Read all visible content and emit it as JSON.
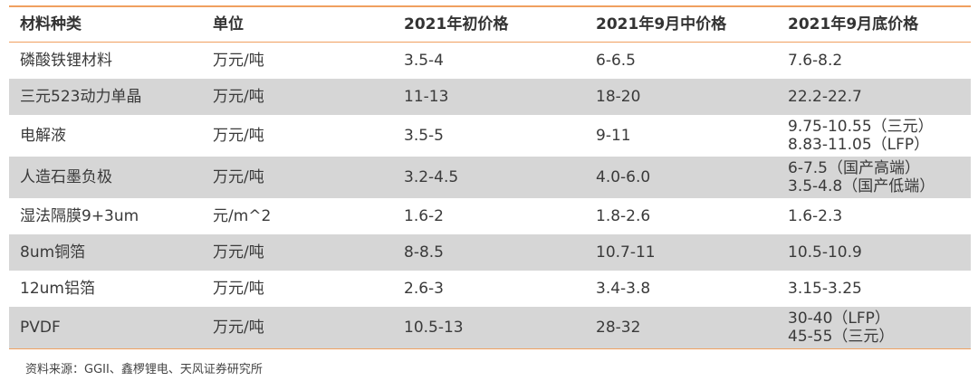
{
  "table": {
    "headers": [
      "材料种类",
      "单位",
      "2021年初价格",
      "2021年9月中价格",
      "2021年9月底价格"
    ],
    "rows": [
      {
        "material": "磷酸铁锂材料",
        "unit": "万元/吨",
        "early": "3.5-4",
        "mid_sep": "6-6.5",
        "end_sep": [
          "7.6-8.2"
        ]
      },
      {
        "material": "三元523动力单晶",
        "unit": "万元/吨",
        "early": "11-13",
        "mid_sep": "18-20",
        "end_sep": [
          "22.2-22.7"
        ]
      },
      {
        "material": "电解液",
        "unit": "万元/吨",
        "early": "3.5-5",
        "mid_sep": "9-11",
        "end_sep": [
          "9.75-10.55（三元）",
          "8.83-11.05（LFP）"
        ]
      },
      {
        "material": "人造石墨负极",
        "unit": "万元/吨",
        "early": "3.2-4.5",
        "mid_sep": "4.0-6.0",
        "end_sep": [
          "6-7.5（国产高端）",
          "3.5-4.8（国产低端）"
        ]
      },
      {
        "material": "湿法隔膜9+3um",
        "unit": "元/m^2",
        "early": "1.6-2",
        "mid_sep": "1.8-2.6",
        "end_sep": [
          "1.6-2.3"
        ]
      },
      {
        "material": "8um铜箔",
        "unit": "万元/吨",
        "early": "8-8.5",
        "mid_sep": "10.7-11",
        "end_sep": [
          "10.5-10.9"
        ]
      },
      {
        "material": "12um铝箔",
        "unit": "万元/吨",
        "early": "2.6-3",
        "mid_sep": "3.4-3.8",
        "end_sep": [
          "3.15-3.25"
        ]
      },
      {
        "material": "PVDF",
        "unit": "万元/吨",
        "early": "10.5-13",
        "mid_sep": "28-32",
        "end_sep": [
          "30-40（LFP）",
          "45-55（三元）"
        ]
      }
    ]
  },
  "source": "资料来源：GGII、鑫椤锂电、天风证券研究所"
}
